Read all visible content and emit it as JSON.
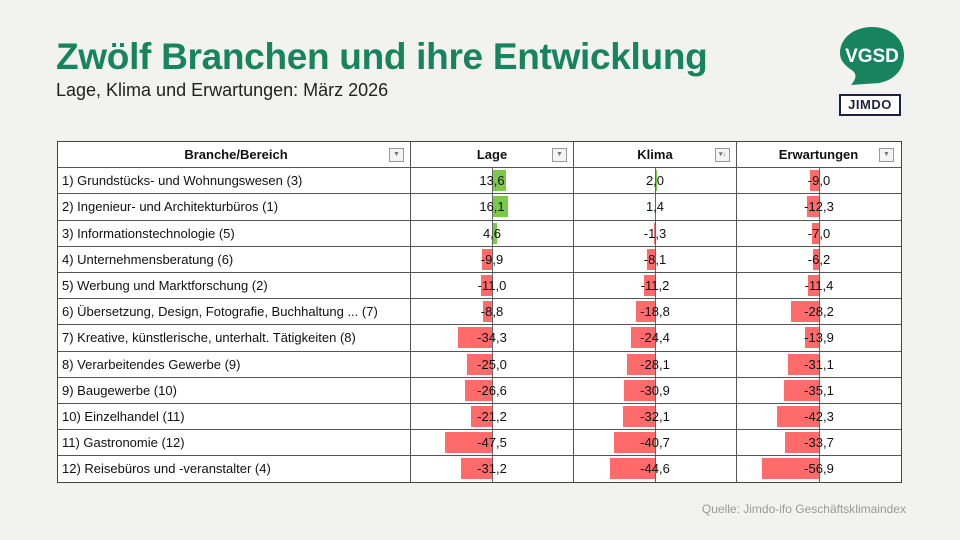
{
  "header": {
    "title": "Zwölf Branchen und ihre Entwicklung",
    "subtitle": "Lage, Klima und Erwartungen: März 2026"
  },
  "logos": {
    "vgsd": "VGSD",
    "jimdo": "JIMDO"
  },
  "colors": {
    "title": "#17845f",
    "positive": "#7cc84a",
    "negative": "#ff6b6b"
  },
  "table": {
    "columns": [
      "Branche/Bereich",
      "Lage",
      "Klima",
      "Erwartungen"
    ],
    "rows": [
      {
        "name": "1) Grundstücks- und Wohnungswesen (3)",
        "values": [
          "13,6",
          "2,0",
          "-9,0"
        ]
      },
      {
        "name": "2) Ingenieur- und Architekturbüros (1)",
        "values": [
          "16,1",
          "1,4",
          "-12,3"
        ]
      },
      {
        "name": "3) Informationstechnologie (5)",
        "values": [
          "4,6",
          "-1,3",
          "-7,0"
        ]
      },
      {
        "name": "4) Unternehmensberatung (6)",
        "values": [
          "-9,9",
          "-8,1",
          "-6,2"
        ]
      },
      {
        "name": "5) Werbung und Marktforschung (2)",
        "values": [
          "-11,0",
          "-11,2",
          "-11,4"
        ]
      },
      {
        "name": "6) Übersetzung, Design, Fotografie, Buchhaltung ... (7)",
        "values": [
          "-8,8",
          "-18,8",
          "-28,2"
        ]
      },
      {
        "name": "7) Kreative, künstlerische, unterhalt. Tätigkeiten (8)",
        "values": [
          "-34,3",
          "-24,4",
          "-13,9"
        ]
      },
      {
        "name": "8) Verarbeitendes Gewerbe (9)",
        "values": [
          "-25,0",
          "-28,1",
          "-31,1"
        ]
      },
      {
        "name": "9) Baugewerbe (10)",
        "values": [
          "-26,6",
          "-30,9",
          "-35,1"
        ]
      },
      {
        "name": "10) Einzelhandel (11)",
        "values": [
          "-21,2",
          "-32,1",
          "-42,3"
        ]
      },
      {
        "name": "11) Gastronomie (12)",
        "values": [
          "-47,5",
          "-40,7",
          "-33,7"
        ]
      },
      {
        "name": "12) Reisebüros und -veranstalter (4)",
        "values": [
          "-31,2",
          "-44,6",
          "-56,9"
        ]
      }
    ]
  },
  "source": "Quelle: Jimdo-ifo Geschäftsklimaindex"
}
